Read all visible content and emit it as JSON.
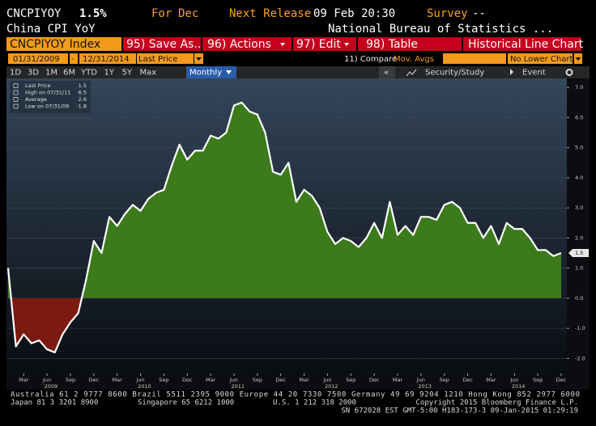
{
  "header": {
    "ticker": "CNCPIYOY",
    "last": "1.5%",
    "for_label": "For",
    "for_value": "Dec",
    "next_release_label": "Next Release",
    "next_release_value": "09 Feb 20:30",
    "survey_label": "Survey",
    "survey_value": "--",
    "name": "China CPI YoY",
    "source": "National Bureau of Statistics ..."
  },
  "toolbar": {
    "security": "CNCPIYOY Index",
    "buttons": [
      "95) Save As...",
      "96) Actions",
      "97) Edit",
      "98) Table"
    ],
    "chart_type": "Historical Line Chart"
  },
  "range": {
    "start": "01/31/2009",
    "separator": "-",
    "end": "12/31/2014",
    "field": "Last Price",
    "compare": "11) Compare",
    "compare_value": "Mov. Avgs",
    "lower": "No Lower Chart"
  },
  "periods": [
    "1D",
    "3D",
    "1M",
    "6M",
    "YTD",
    "1Y",
    "5Y",
    "Max"
  ],
  "frequency": "Monthly",
  "tools": {
    "collapse": "«",
    "study": "Security/Study",
    "event": "Event"
  },
  "chart_data": {
    "type": "area",
    "categories": [
      null,
      null,
      "Mar",
      null,
      null,
      "Jun",
      null,
      null,
      "Sep",
      null,
      null,
      "Dec",
      null,
      null,
      "Mar",
      null,
      null,
      "Jun",
      null,
      null,
      "Sep",
      null,
      null,
      "Dec",
      null,
      null,
      "Mar",
      null,
      null,
      "Jun",
      null,
      null,
      "Sep",
      null,
      null,
      "Dec",
      null,
      null,
      "Mar",
      null,
      null,
      "Jun",
      null,
      null,
      "Sep",
      null,
      null,
      "Dec",
      null,
      null,
      "Mar",
      null,
      null,
      "Jun",
      null,
      null,
      "Sep",
      null,
      null,
      "Dec",
      null,
      null,
      "Mar",
      null,
      null,
      "Jun",
      null,
      null,
      "Sep",
      null,
      null,
      "Dec"
    ],
    "years": [
      "2009",
      "2010",
      "2011",
      "2012",
      "2013",
      "2014"
    ],
    "values": [
      1.0,
      -1.6,
      -1.2,
      -1.5,
      -1.4,
      -1.7,
      -1.8,
      -1.2,
      -0.8,
      -0.5,
      0.6,
      1.9,
      1.5,
      2.7,
      2.4,
      2.8,
      3.1,
      2.9,
      3.3,
      3.5,
      3.6,
      4.4,
      5.1,
      4.6,
      4.9,
      4.9,
      5.4,
      5.3,
      5.5,
      6.4,
      6.5,
      6.2,
      6.1,
      5.5,
      4.2,
      4.1,
      4.5,
      3.2,
      3.6,
      3.4,
      3.0,
      2.2,
      1.8,
      2.0,
      1.9,
      1.7,
      2.0,
      2.5,
      2.0,
      3.2,
      2.1,
      2.4,
      2.1,
      2.7,
      2.7,
      2.6,
      3.1,
      3.2,
      3.0,
      2.5,
      2.5,
      2.0,
      2.4,
      1.8,
      2.5,
      2.3,
      2.3,
      2.0,
      1.6,
      1.6,
      1.4,
      1.5
    ],
    "color": "#ffffff",
    "positive_color": "#3d7a1b",
    "negative_color": "#7a1a10",
    "ylim": [
      -2.5,
      7.3
    ],
    "yticks": [
      {
        "value": -2,
        "label": "-2.0"
      },
      {
        "value": -1,
        "label": "-1.0"
      },
      {
        "value": 0,
        "label": "0.0"
      },
      {
        "value": 1,
        "label": "1.0"
      },
      {
        "value": 2,
        "label": "2.0"
      },
      {
        "value": 3,
        "label": "3.0"
      },
      {
        "value": 4,
        "label": "4.0"
      },
      {
        "value": 5,
        "label": "5.0"
      },
      {
        "value": 6,
        "label": "6.0"
      },
      {
        "value": 7,
        "label": "7.0"
      }
    ],
    "grid": true,
    "legend": [
      {
        "label": "Last Price",
        "value": 1.5
      },
      {
        "label": "High on 07/31/11",
        "value": 6.5
      },
      {
        "label": "Average",
        "value": 2.6
      },
      {
        "label": "Low on 07/31/09",
        "value": -1.8
      }
    ],
    "last_tag": 1.5
  },
  "footer": {
    "line1": "Australia 61 2 9777 8600 Brazil 5511 2395 9000 Europe 44 20 7330 7500 Germany 49 69 9204 1210 Hong Kong 852 2977 6000",
    "line2": [
      "Japan 81 3 3201 8900",
      "Singapore 65 6212 1000",
      "U.S. 1 212 318 2000",
      "Copyright 2015 Bloomberg Finance L.P."
    ],
    "line3": "SN 672028 EST  GMT-5:00 H183-173-3 09-Jan-2015 01:29:19"
  }
}
